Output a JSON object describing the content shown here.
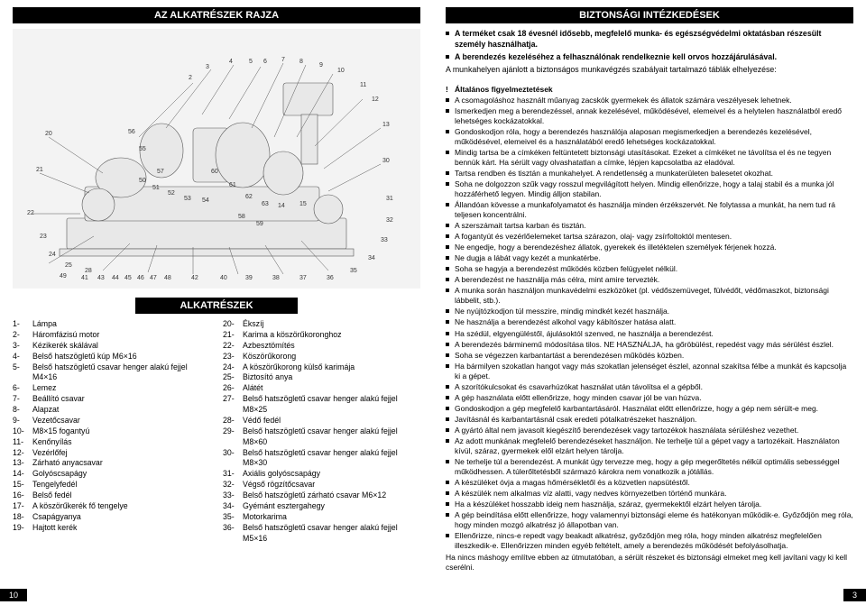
{
  "leftPage": {
    "title": "AZ ALKATRÉSZEK RAJZA",
    "subTitle": "ALKATRÉSZEK",
    "partsLeft": [
      {
        "n": "1-",
        "t": "Lámpa"
      },
      {
        "n": "2-",
        "t": "Háromfázisú motor"
      },
      {
        "n": "3-",
        "t": "Kézikerék skálával"
      },
      {
        "n": "4-",
        "t": "Belső hatszögletű kúp M6×16"
      },
      {
        "n": "5-",
        "t": "Belső hatszögletű csavar henger alakú fejjel M4×16"
      },
      {
        "n": "6-",
        "t": "Lemez"
      },
      {
        "n": "7-",
        "t": "Beállító csavar"
      },
      {
        "n": "8-",
        "t": "Alapzat"
      },
      {
        "n": "9-",
        "t": "Vezetőcsavar"
      },
      {
        "n": "10-",
        "t": "M8×15 fogantyú"
      },
      {
        "n": "11-",
        "t": "Kenőnyílás"
      },
      {
        "n": "12-",
        "t": "Vezérlőfej"
      },
      {
        "n": "13-",
        "t": "Zárható anyacsavar"
      },
      {
        "n": "14-",
        "t": "Golyóscsapágy"
      },
      {
        "n": "15-",
        "t": "Tengelyfedél"
      },
      {
        "n": "16-",
        "t": "Belső fedél"
      },
      {
        "n": "17-",
        "t": "A köszörűkerék fő tengelye"
      },
      {
        "n": "18-",
        "t": "Csapágyanya"
      },
      {
        "n": "19-",
        "t": "Hajtott kerék"
      }
    ],
    "partsRight": [
      {
        "n": "20-",
        "t": "Ékszíj"
      },
      {
        "n": "21-",
        "t": "Karima a köszörűkoronghoz"
      },
      {
        "n": "22-",
        "t": "Azbesztömítés"
      },
      {
        "n": "23-",
        "t": "Köszörűkorong"
      },
      {
        "n": "24-",
        "t": "A köszörűkorong külső karimája"
      },
      {
        "n": "25-",
        "t": "Biztosító anya"
      },
      {
        "n": "26-",
        "t": "Alátét"
      },
      {
        "n": "27-",
        "t": "Belső hatszögletű csavar henger alakú fejjel M8×25"
      },
      {
        "n": "28-",
        "t": "Védő fedél"
      },
      {
        "n": "29-",
        "t": "Belső hatszögletű csavar henger alakú fejjel M8×60"
      },
      {
        "n": "30-",
        "t": "Belső hatszögletű csavar henger alakú fejjel M8×30"
      },
      {
        "n": "31-",
        "t": "Axiális golyóscsapágy"
      },
      {
        "n": "32-",
        "t": "Végső rögzítőcsavar"
      },
      {
        "n": "33-",
        "t": "Belső hatszögletű zárható csavar M6×12"
      },
      {
        "n": "34-",
        "t": "Gyémánt esztergahegy"
      },
      {
        "n": "35-",
        "t": "Motorkarima"
      },
      {
        "n": "36-",
        "t": "Belső hatszögletű csavar henger alakú fejjel M5×16"
      }
    ],
    "pageNumber": "10",
    "diagram": {
      "callouts": [
        2,
        3,
        4,
        5,
        6,
        7,
        8,
        9,
        10,
        11,
        12,
        13,
        14,
        15,
        20,
        21,
        22,
        23,
        24,
        25,
        28,
        30,
        31,
        32,
        33,
        34,
        35,
        36,
        37,
        38,
        39,
        40,
        41,
        42,
        43,
        44,
        45,
        46,
        47,
        48,
        49,
        50,
        51,
        52,
        53,
        54,
        55,
        56,
        57,
        58,
        59,
        60,
        61,
        62,
        63
      ],
      "background_color": "#f3f3f3",
      "line_color": "#555555"
    }
  },
  "rightPage": {
    "title": "BIZTONSÁGI INTÉZKEDÉSEK",
    "intro": [
      "A terméket csak 18 évesnél idősebb, megfelelő munka- és egészségvédelmi oktatásban részesült személy használhatja.",
      "A berendezés kezeléséhez a felhasználónak rendelkeznie kell orvos hozzájárulásával."
    ],
    "introTail": "A munkahelyen ajánlott a biztonságos munkavégzés szabályait tartalmazó táblák elhelyezése:",
    "warnTitle": "Általános figyelmeztetések",
    "warnings": [
      "A csomagoláshoz használt műanyag zacskók gyermekek és állatok számára veszélyesek lehetnek.",
      "Ismerkedjen meg a berendezéssel, annak kezelésével, működésével, elemeivel és a helytelen használatból eredő lehetséges kockázatokkal.",
      "Gondoskodjon róla, hogy a berendezés használója alaposan megismerkedjen a berendezés kezelésével, működésével, elemeivel és a használatából eredő lehetséges kockázatokkal.",
      "Mindig tartsa be a címkéken feltüntetett biztonsági utasításokat. Ezeket a címkéket ne távolítsa el és ne tegyen bennük kárt. Ha sérült vagy olvashatatlan a címke, lépjen kapcsolatba az eladóval.",
      "Tartsa rendben és tisztán a munkahelyet. A rendetlenség a munkaterületen balesetet okozhat.",
      "Soha ne dolgozzon szűk vagy rosszul megvilágított helyen. Mindig ellenőrizze, hogy a talaj stabil és a munka jól hozzáférhető legyen. Mindig álljon stabilan.",
      "Állandóan kövesse a munkafolyamatot és használja minden érzékszervét. Ne folytassa a munkát, ha nem tud rá teljesen koncentrálni.",
      "A szerszámait tartsa karban és tisztán.",
      "A fogantyút és vezérlőelemeket tartsa szárazon, olaj- vagy zsírfoltoktól mentesen.",
      "Ne engedje, hogy a berendezéshez állatok, gyerekek és illetéktelen személyek férjenek hozzá.",
      "Ne dugja a lábát vagy kezét a munkatérbe.",
      "Soha se hagyja a berendezést működés közben felügyelet nélkül.",
      "A berendezést ne használja más célra, mint amire tervezték.",
      "A munka során használjon munkavédelmi eszközöket (pl. védőszemüveget, fülvédőt, védőmaszkot, biztonsági lábbelit, stb.).",
      "Ne nyújtózkodjon túl messzire, mindig mindkét kezét használja.",
      "Ne használja a berendezést alkohol vagy kábítószer hatása alatt.",
      "Ha szédül, elgyengüléstől, ájulásoktól szenved, ne használja a berendezést.",
      "A berendezés bárminemű módosítása tilos. NE HASZNÁLJA, ha gőröbülést, repedést vagy más sérülést észlel.",
      "Soha se végezzen karbantartást a berendezésen működés közben.",
      "Ha bármilyen szokatlan hangot vagy más szokatlan jelenséget észlel, azonnal szakítsa félbe a munkát és kapcsolja ki a gépet.",
      "A szorítókulcsokat és csavarhúzókat használat után távolítsa el a gépből.",
      "A gép használata előtt ellenőrizze, hogy minden csavar jól be van húzva.",
      "Gondoskodjon a gép megfelelő karbantartásáról. Használat előtt ellenőrizze, hogy a gép nem sérült-e meg.",
      "Javításnál és karbantartásnál csak eredeti pótalkatrészeket használjon.",
      "A gyártó által nem javasolt kiegészítő berendezések vagy tartozékok használata sérüléshez vezethet.",
      "Az adott munkának megfelelő berendezéseket használjon. Ne terhelje túl a gépet vagy a tartozékait. Használaton kívül, száraz, gyermekek elől elzárt helyen tárolja.",
      "Ne terhelje túl a berendezést. A munkát úgy tervezze meg, hogy a gép megerőltetés nélkül optimális sebességgel működhessen. A túlerőltetésből származó károkra nem vonatkozik a jótállás.",
      "A készüléket óvja a magas hőmérsékletől és a közvetlen napsütéstől.",
      "A készülék nem alkalmas víz alatti, vagy nedves környezetben történő munkára.",
      "Ha a készüléket hosszabb ideig nem használja, száraz, gyermekektől elzárt helyen tárolja.",
      "A gép beindítása előtt ellenőrizze, hogy valamennyi biztonsági eleme és hatékonyan működik-e. Győződjön meg róla, hogy minden mozgó alkatrész jó állapotban van.",
      "Ellenőrizze, nincs-e repedt vagy beakadt alkatrész, győződjön meg róla, hogy minden alkatrész megfelelően illeszkedik-e. Ellenőrizzen minden egyéb feltételt, amely a berendezés működését befolyásolhatja."
    ],
    "closing": "Ha nincs máshogy említve ebben az útmutatóban, a sérült részeket és biztonsági elmeket meg kell javítani vagy ki kell cserélni.",
    "pageNumber": "3"
  }
}
